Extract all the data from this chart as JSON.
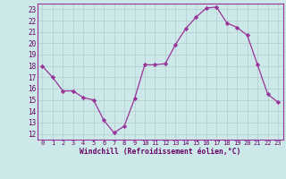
{
  "x": [
    0,
    1,
    2,
    3,
    4,
    5,
    6,
    7,
    8,
    9,
    10,
    11,
    12,
    13,
    14,
    15,
    16,
    17,
    18,
    19,
    20,
    21,
    22,
    23
  ],
  "y": [
    18,
    17,
    15.8,
    15.8,
    15.2,
    15.0,
    13.2,
    12.1,
    12.7,
    15.1,
    18.1,
    18.1,
    18.2,
    19.9,
    21.3,
    22.3,
    23.1,
    23.2,
    21.8,
    21.4,
    20.7,
    18.1,
    15.5,
    14.8
  ],
  "line_color": "#993399",
  "marker_color": "#993399",
  "bg_color": "#cce8e8",
  "grid_color": "#b0cccc",
  "border_color": "#993399",
  "axis_label_color": "#660066",
  "tick_color": "#660066",
  "xlabel": "Windchill (Refroidissement éolien,°C)",
  "ylim": [
    11.5,
    23.5
  ],
  "xlim": [
    -0.5,
    23.5
  ],
  "yticks": [
    12,
    13,
    14,
    15,
    16,
    17,
    18,
    19,
    20,
    21,
    22,
    23
  ],
  "xticks": [
    0,
    1,
    2,
    3,
    4,
    5,
    6,
    7,
    8,
    9,
    10,
    11,
    12,
    13,
    14,
    15,
    16,
    17,
    18,
    19,
    20,
    21,
    22,
    23
  ]
}
